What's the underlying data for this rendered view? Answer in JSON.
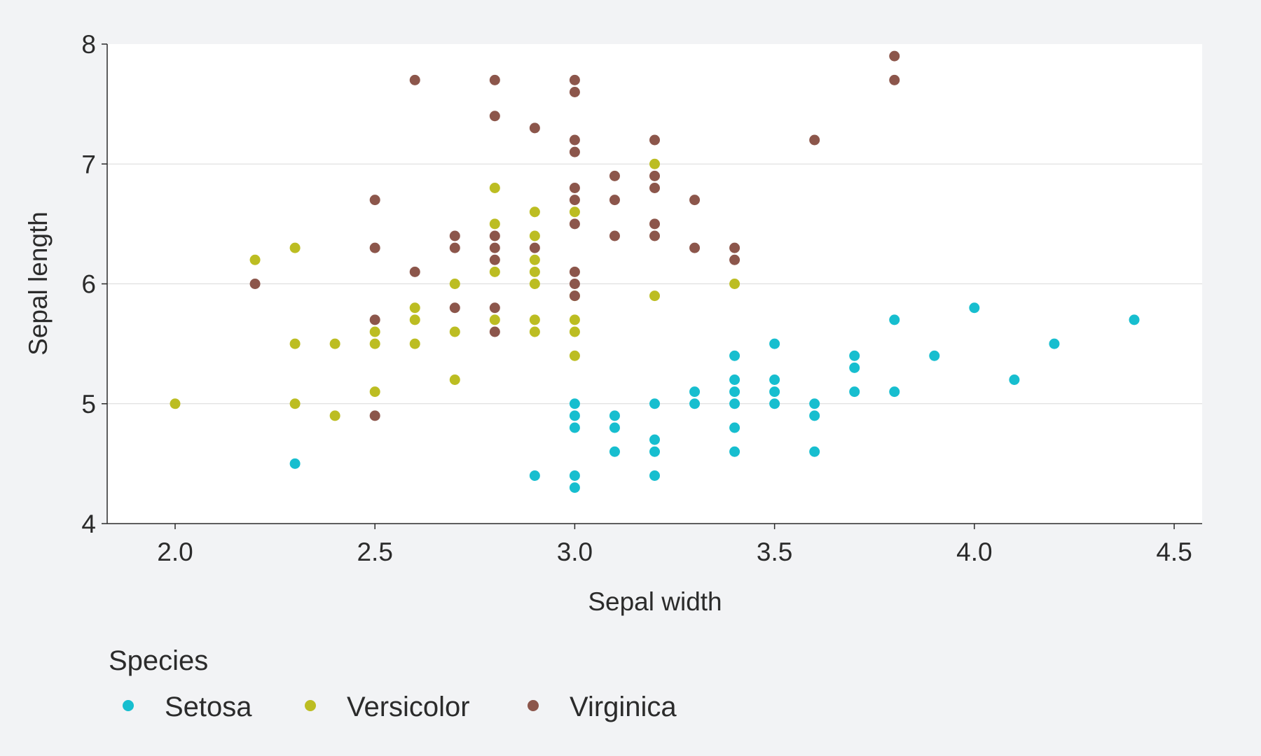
{
  "chart_data": {
    "type": "scatter",
    "title": "",
    "xlabel": "Sepal width",
    "ylabel": "Sepal length",
    "xlim": [
      1.83,
      4.57
    ],
    "ylim": [
      4,
      8
    ],
    "xticks": [
      "2.0",
      "2.5",
      "3.0",
      "3.5",
      "4.0",
      "4.5"
    ],
    "yticks": [
      "4",
      "5",
      "6",
      "7",
      "8"
    ],
    "grid": "horizontal",
    "legend": {
      "title": "Species",
      "placement": "bottom-left",
      "items": [
        "Setosa",
        "Versicolor",
        "Virginica"
      ]
    },
    "series": [
      {
        "name": "Setosa",
        "color": "#17becf",
        "points": [
          [
            2.3,
            4.5
          ],
          [
            2.9,
            4.4
          ],
          [
            3.0,
            5.0
          ],
          [
            3.0,
            4.9
          ],
          [
            3.0,
            4.8
          ],
          [
            3.0,
            4.4
          ],
          [
            3.0,
            4.3
          ],
          [
            3.1,
            4.9
          ],
          [
            3.1,
            4.8
          ],
          [
            3.1,
            4.6
          ],
          [
            3.2,
            5.0
          ],
          [
            3.2,
            4.7
          ],
          [
            3.2,
            4.6
          ],
          [
            3.2,
            4.4
          ],
          [
            3.3,
            5.1
          ],
          [
            3.3,
            5.0
          ],
          [
            3.4,
            5.4
          ],
          [
            3.4,
            5.2
          ],
          [
            3.4,
            5.1
          ],
          [
            3.4,
            5.0
          ],
          [
            3.4,
            4.8
          ],
          [
            3.4,
            4.6
          ],
          [
            3.5,
            5.5
          ],
          [
            3.5,
            5.2
          ],
          [
            3.5,
            5.1
          ],
          [
            3.5,
            5.0
          ],
          [
            3.6,
            5.0
          ],
          [
            3.6,
            4.9
          ],
          [
            3.6,
            4.6
          ],
          [
            3.7,
            5.4
          ],
          [
            3.7,
            5.3
          ],
          [
            3.7,
            5.1
          ],
          [
            3.8,
            5.7
          ],
          [
            3.8,
            5.1
          ],
          [
            3.9,
            5.4
          ],
          [
            4.0,
            5.8
          ],
          [
            4.1,
            5.2
          ],
          [
            4.2,
            5.5
          ],
          [
            4.4,
            5.7
          ]
        ]
      },
      {
        "name": "Versicolor",
        "color": "#bcbd22",
        "points": [
          [
            2.0,
            5.0
          ],
          [
            2.2,
            6.2
          ],
          [
            2.3,
            6.3
          ],
          [
            2.3,
            5.5
          ],
          [
            2.3,
            5.0
          ],
          [
            2.4,
            5.5
          ],
          [
            2.4,
            4.9
          ],
          [
            2.5,
            5.6
          ],
          [
            2.5,
            5.5
          ],
          [
            2.5,
            5.1
          ],
          [
            2.6,
            5.8
          ],
          [
            2.6,
            5.7
          ],
          [
            2.6,
            5.5
          ],
          [
            2.7,
            6.0
          ],
          [
            2.7,
            5.6
          ],
          [
            2.7,
            5.2
          ],
          [
            2.8,
            6.8
          ],
          [
            2.8,
            6.5
          ],
          [
            2.8,
            6.1
          ],
          [
            2.8,
            5.7
          ],
          [
            2.9,
            6.6
          ],
          [
            2.9,
            6.4
          ],
          [
            2.9,
            6.2
          ],
          [
            2.9,
            6.1
          ],
          [
            2.9,
            6.0
          ],
          [
            2.9,
            5.7
          ],
          [
            2.9,
            5.6
          ],
          [
            3.0,
            6.6
          ],
          [
            3.0,
            5.9
          ],
          [
            3.0,
            5.7
          ],
          [
            3.0,
            5.6
          ],
          [
            3.0,
            5.4
          ],
          [
            3.2,
            7.0
          ],
          [
            3.2,
            5.9
          ],
          [
            3.4,
            6.0
          ]
        ]
      },
      {
        "name": "Virginica",
        "color": "#8c564b",
        "points": [
          [
            2.2,
            6.0
          ],
          [
            2.5,
            6.7
          ],
          [
            2.5,
            6.3
          ],
          [
            2.5,
            5.7
          ],
          [
            2.5,
            4.9
          ],
          [
            2.6,
            7.7
          ],
          [
            2.6,
            6.1
          ],
          [
            2.7,
            6.4
          ],
          [
            2.7,
            6.3
          ],
          [
            2.7,
            5.8
          ],
          [
            2.8,
            7.7
          ],
          [
            2.8,
            7.4
          ],
          [
            2.8,
            6.4
          ],
          [
            2.8,
            6.3
          ],
          [
            2.8,
            6.2
          ],
          [
            2.8,
            5.8
          ],
          [
            2.8,
            5.6
          ],
          [
            2.9,
            7.3
          ],
          [
            2.9,
            6.3
          ],
          [
            3.0,
            7.7
          ],
          [
            3.0,
            7.6
          ],
          [
            3.0,
            7.2
          ],
          [
            3.0,
            7.1
          ],
          [
            3.0,
            6.8
          ],
          [
            3.0,
            6.7
          ],
          [
            3.0,
            6.5
          ],
          [
            3.0,
            6.1
          ],
          [
            3.0,
            6.0
          ],
          [
            3.0,
            5.9
          ],
          [
            3.1,
            6.9
          ],
          [
            3.1,
            6.7
          ],
          [
            3.1,
            6.4
          ],
          [
            3.2,
            7.2
          ],
          [
            3.2,
            6.9
          ],
          [
            3.2,
            6.8
          ],
          [
            3.2,
            6.5
          ],
          [
            3.2,
            6.4
          ],
          [
            3.3,
            6.7
          ],
          [
            3.3,
            6.3
          ],
          [
            3.4,
            6.3
          ],
          [
            3.4,
            6.2
          ],
          [
            3.6,
            7.2
          ],
          [
            3.8,
            7.9
          ],
          [
            3.8,
            7.7
          ]
        ]
      }
    ]
  }
}
